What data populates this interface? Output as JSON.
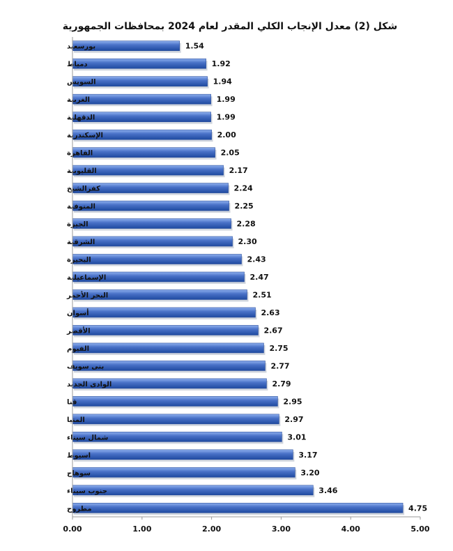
{
  "chart_data": {
    "type": "bar",
    "orientation": "horizontal",
    "title": "شكل (2) معدل الإنجاب الكلي المقدر لعام 2024 بمحافظات الجمهورية",
    "categories": [
      "بورسعيد",
      "دمياط",
      "السويس",
      "الغربية",
      "الدقهلية",
      "الإسكندرية",
      "القاهرة",
      "القليوبية",
      "كفرالشيخ",
      "المنوفية",
      "الجيزة",
      "الشرقية",
      "البحيرة",
      "الإسماعيلية",
      "البحر الأحمر",
      "أسوان",
      "الأقصر",
      "الفيوم",
      "بنى سويف",
      "الوادى الجديد",
      "قنا",
      "المنيا",
      "شمال سيناء",
      "اسيوط",
      "سوهاج",
      "جنوب سيناء",
      "مطروح"
    ],
    "values": [
      1.54,
      1.92,
      1.94,
      1.99,
      1.99,
      2.0,
      2.05,
      2.17,
      2.24,
      2.25,
      2.28,
      2.3,
      2.43,
      2.47,
      2.51,
      2.63,
      2.67,
      2.75,
      2.77,
      2.79,
      2.95,
      2.97,
      3.01,
      3.17,
      3.2,
      3.46,
      4.75
    ],
    "value_labels": [
      "1.54",
      "1.92",
      "1.94",
      "1.99",
      "1.99",
      "2.00",
      "2.05",
      "2.17",
      "2.24",
      "2.25",
      "2.28",
      "2.30",
      "2.43",
      "2.47",
      "2.51",
      "2.63",
      "2.67",
      "2.75",
      "2.77",
      "2.79",
      "2.95",
      "2.97",
      "3.01",
      "3.17",
      "3.20",
      "3.46",
      "4.75"
    ],
    "xlim": [
      0,
      5
    ],
    "x_ticks": [
      0,
      1,
      2,
      3,
      4,
      5
    ],
    "x_tick_labels": [
      "0.00",
      "1.00",
      "2.00",
      "3.00",
      "4.00",
      "5.00"
    ],
    "grid": false,
    "legend": "none",
    "bar_color": "#4a72c8",
    "bar_color_light": "#8fb0ee",
    "bar_color_dark": "#1f4aa0"
  }
}
